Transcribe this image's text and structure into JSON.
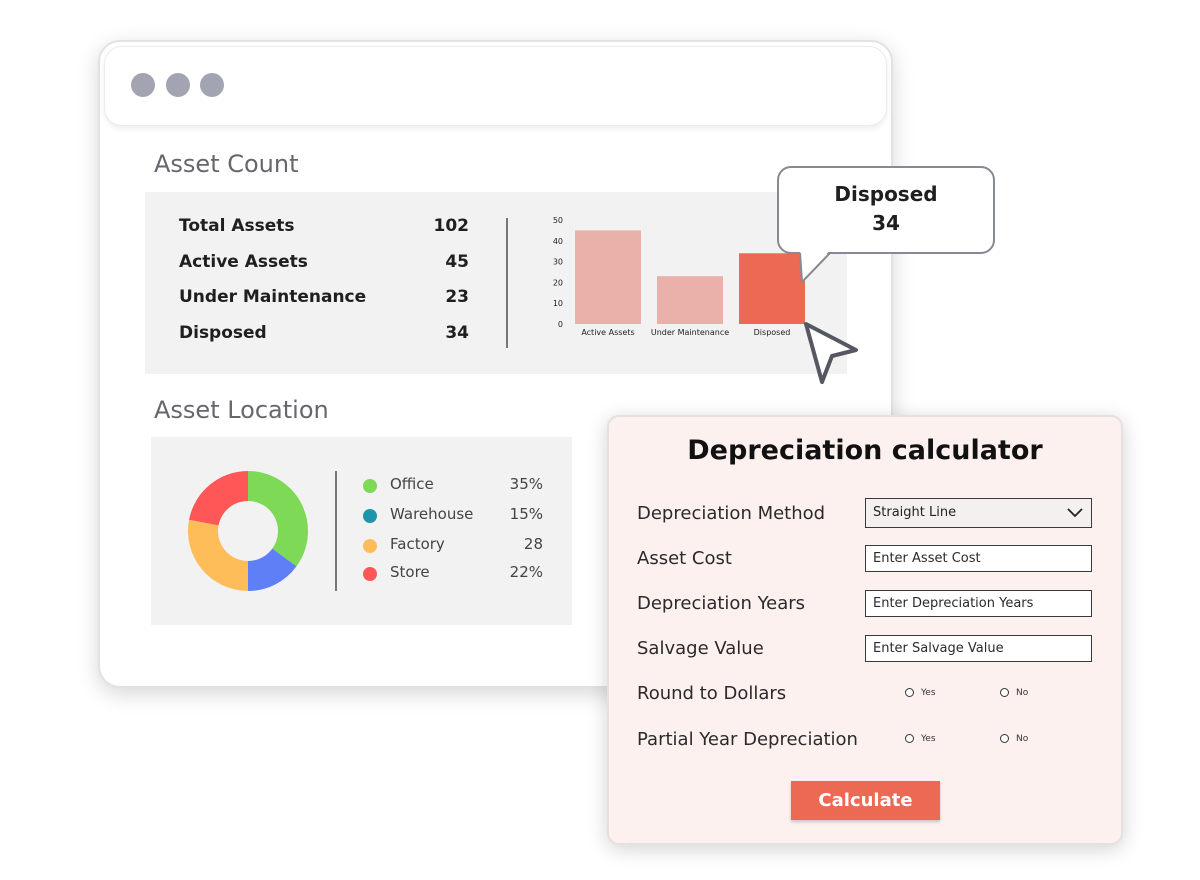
{
  "asset_count": {
    "title": "Asset Count",
    "stats": [
      {
        "label": "Total Assets",
        "value": "102"
      },
      {
        "label": "Active Assets",
        "value": "45"
      },
      {
        "label": "Under Maintenance",
        "value": "23"
      },
      {
        "label": "Disposed",
        "value": "34"
      }
    ]
  },
  "chart_data": {
    "type": "bar",
    "categories": [
      "Active Assets",
      "Under Maintenance",
      "Disposed"
    ],
    "values": [
      45,
      23,
      34
    ],
    "ylim": [
      0,
      50
    ],
    "yticks": [
      "0",
      "10",
      "20",
      "30",
      "40",
      "50"
    ],
    "colors": [
      "#e9b1a9",
      "#e9b1a9",
      "#ec6a53"
    ],
    "highlighted": "Disposed"
  },
  "tooltip": {
    "label": "Disposed",
    "value": "34"
  },
  "asset_location": {
    "title": "Asset Location",
    "items": [
      {
        "name": "Office",
        "pct": "35%",
        "color": "#7ed957",
        "share": 35
      },
      {
        "name": "Warehouse",
        "pct": "15%",
        "color": "#1f95ab",
        "share": 15
      },
      {
        "name": "Factory",
        "pct": "28",
        "color": "#ffbd59",
        "share": 28
      },
      {
        "name": "Store",
        "pct": "22%",
        "color": "#ff5757",
        "share": 22
      }
    ],
    "donut_colors": [
      "#7ed957",
      "#5e7ff5",
      "#ffbd59",
      "#ff5757"
    ]
  },
  "calculator": {
    "title": "Depreciation calculator",
    "method_label": "Depreciation Method",
    "method_value": "Straight Line",
    "cost_label": "Asset Cost",
    "cost_placeholder": "Enter Asset Cost",
    "years_label": "Depreciation Years",
    "years_placeholder": "Enter Depreciation Years",
    "salvage_label": "Salvage Value",
    "salvage_placeholder": "Enter Salvage Value",
    "round_label": "Round to Dollars",
    "partial_label": "Partial Year Depreciation",
    "yes_label": "Yes",
    "no_label": "No",
    "button_label": "Calculate"
  }
}
